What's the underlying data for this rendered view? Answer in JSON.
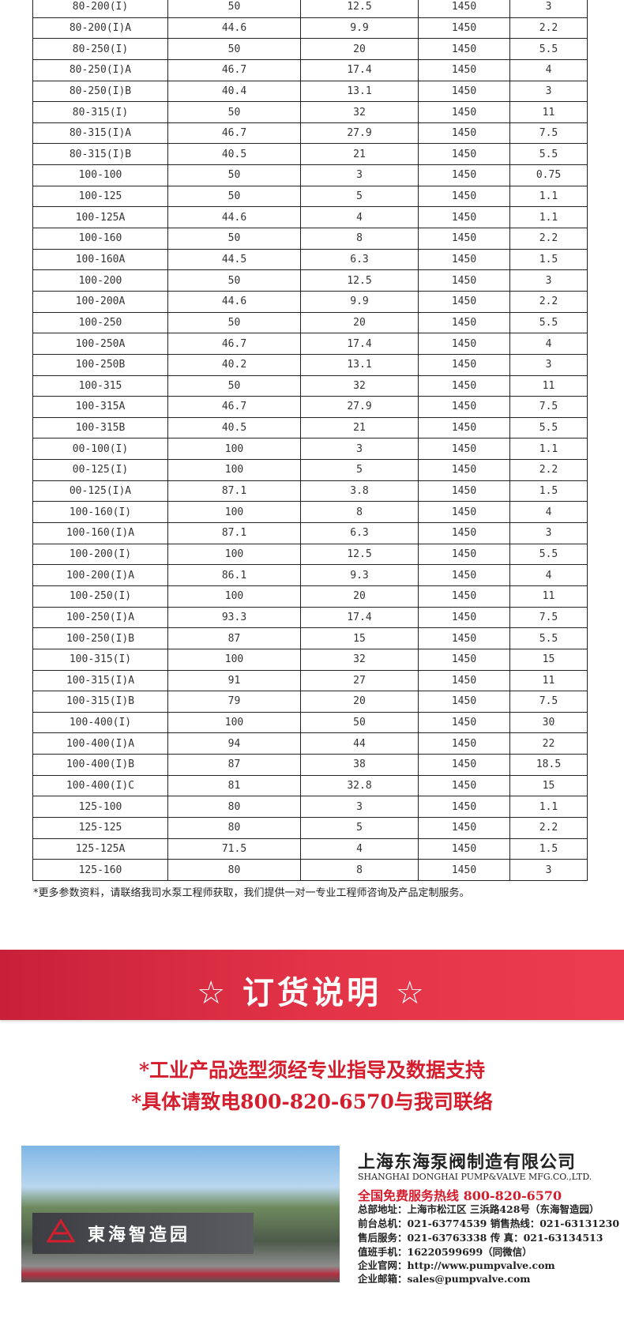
{
  "table": {
    "rows": [
      [
        "80-200(I)",
        "50",
        "12.5",
        "1450",
        "3"
      ],
      [
        "80-200(I)A",
        "44.6",
        "9.9",
        "1450",
        "2.2"
      ],
      [
        "80-250(I)",
        "50",
        "20",
        "1450",
        "5.5"
      ],
      [
        "80-250(I)A",
        "46.7",
        "17.4",
        "1450",
        "4"
      ],
      [
        "80-250(I)B",
        "40.4",
        "13.1",
        "1450",
        "3"
      ],
      [
        "80-315(I)",
        "50",
        "32",
        "1450",
        "11"
      ],
      [
        "80-315(I)A",
        "46.7",
        "27.9",
        "1450",
        "7.5"
      ],
      [
        "80-315(I)B",
        "40.5",
        "21",
        "1450",
        "5.5"
      ],
      [
        "100-100",
        "50",
        "3",
        "1450",
        "0.75"
      ],
      [
        "100-125",
        "50",
        "5",
        "1450",
        "1.1"
      ],
      [
        "100-125A",
        "44.6",
        "4",
        "1450",
        "1.1"
      ],
      [
        "100-160",
        "50",
        "8",
        "1450",
        "2.2"
      ],
      [
        "100-160A",
        "44.5",
        "6.3",
        "1450",
        "1.5"
      ],
      [
        "100-200",
        "50",
        "12.5",
        "1450",
        "3"
      ],
      [
        "100-200A",
        "44.6",
        "9.9",
        "1450",
        "2.2"
      ],
      [
        "100-250",
        "50",
        "20",
        "1450",
        "5.5"
      ],
      [
        "100-250A",
        "46.7",
        "17.4",
        "1450",
        "4"
      ],
      [
        "100-250B",
        "40.2",
        "13.1",
        "1450",
        "3"
      ],
      [
        "100-315",
        "50",
        "32",
        "1450",
        "11"
      ],
      [
        "100-315A",
        "46.7",
        "27.9",
        "1450",
        "7.5"
      ],
      [
        "100-315B",
        "40.5",
        "21",
        "1450",
        "5.5"
      ],
      [
        "00-100(I)",
        "100",
        "3",
        "1450",
        "1.1"
      ],
      [
        "00-125(I)",
        "100",
        "5",
        "1450",
        "2.2"
      ],
      [
        "00-125(I)A",
        "87.1",
        "3.8",
        "1450",
        "1.5"
      ],
      [
        "100-160(I)",
        "100",
        "8",
        "1450",
        "4"
      ],
      [
        "100-160(I)A",
        "87.1",
        "6.3",
        "1450",
        "3"
      ],
      [
        "100-200(I)",
        "100",
        "12.5",
        "1450",
        "5.5"
      ],
      [
        "100-200(I)A",
        "86.1",
        "9.3",
        "1450",
        "4"
      ],
      [
        "100-250(I)",
        "100",
        "20",
        "1450",
        "11"
      ],
      [
        "100-250(I)A",
        "93.3",
        "17.4",
        "1450",
        "7.5"
      ],
      [
        "100-250(I)B",
        "87",
        "15",
        "1450",
        "5.5"
      ],
      [
        "100-315(I)",
        "100",
        "32",
        "1450",
        "15"
      ],
      [
        "100-315(I)A",
        "91",
        "27",
        "1450",
        "11"
      ],
      [
        "100-315(I)B",
        "79",
        "20",
        "1450",
        "7.5"
      ],
      [
        "100-400(I)",
        "100",
        "50",
        "1450",
        "30"
      ],
      [
        "100-400(I)A",
        "94",
        "44",
        "1450",
        "22"
      ],
      [
        "100-400(I)B",
        "87",
        "38",
        "1450",
        "18.5"
      ],
      [
        "100-400(I)C",
        "81",
        "32.8",
        "1450",
        "15"
      ],
      [
        "125-100",
        "80",
        "3",
        "1450",
        "1.1"
      ],
      [
        "125-125",
        "80",
        "5",
        "1450",
        "2.2"
      ],
      [
        "125-125A",
        "71.5",
        "4",
        "1450",
        "1.5"
      ],
      [
        "125-160",
        "80",
        "8",
        "1450",
        "3"
      ]
    ]
  },
  "footnote": "*更多参数资料，请联络我司水泵工程师获取，我们提供一对一专业工程师咨询及产品定制服务。",
  "order": {
    "title": "☆ 订货说明 ☆",
    "line1": "*工业产品选型须经专业指导及数据支持",
    "line2": "*具体请致电800-820-6570与我司联络"
  },
  "photo": {
    "sign_text": "東海智造园"
  },
  "company": {
    "name_cn": "上海东海泵阀制造有限公司",
    "name_en": "SHANGHAI DONGHAI PUMP&VALVE MFG.CO.,LTD.",
    "hotline": "全国免费服务热线  800-820-6570",
    "address": "总部地址：上海市松江区 三浜路428号（东海智造园）",
    "front_desk": "前台总机：021-63774539   销售热线：021-63131230",
    "after_sales": "售后服务：021-63763338   传    真：021-63134513",
    "mobile": "值班手机：16220599699（同微信）",
    "website": "企业官网：http://www.pumpvalve.com",
    "email": "企业邮箱：sales@pumpvalve.com"
  },
  "colors": {
    "accent_red": "#d41e2e",
    "band_red": "#e23347"
  }
}
